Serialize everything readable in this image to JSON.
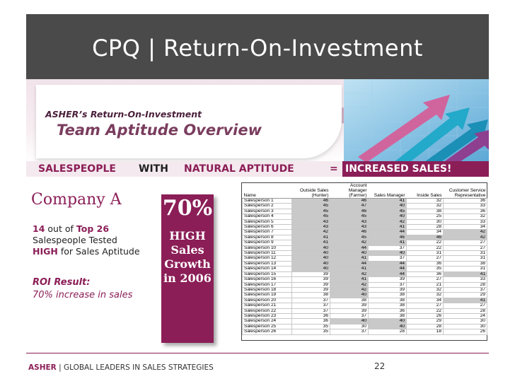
{
  "title": "CPQ | Return-On-Investment",
  "banner": {
    "subtitle": "ASHER’s Return-On-Investment",
    "headline": "Team Aptitude Overview"
  },
  "equation": {
    "part1": "SALESPEOPLE",
    "part2": "WITH",
    "part3": "NATURAL APTITUDE",
    "equals": "=",
    "result": "INCREASED SALES!"
  },
  "company": {
    "name": "Company A",
    "tested_count": "14",
    "out_of": "out of",
    "top": "Top 26",
    "tested_text": "Salespeople Tested",
    "high": "HIGH",
    "aptitude_text": "for Sales Aptitude",
    "roi_title": "ROI Result:",
    "roi_value": "70% increase in sales"
  },
  "growth_box": {
    "percent": "70%",
    "line1": "HIGH",
    "line2": "Sales",
    "line3": "Growth",
    "line4": "in 2006"
  },
  "table": {
    "headers": [
      "Name",
      "Outside Sales (Hunter)",
      "Account Manager (Farmer)",
      "Sales Manager",
      "Inside Sales",
      "Customer Service Representative"
    ],
    "rows": [
      {
        "name": "Salesperson 1",
        "values": [
          46,
          46,
          41,
          32,
          36
        ],
        "hl": [
          1,
          1,
          1,
          0,
          0
        ]
      },
      {
        "name": "Salesperson 2",
        "values": [
          45,
          47,
          40,
          32,
          33
        ],
        "hl": [
          1,
          1,
          1,
          0,
          0
        ]
      },
      {
        "name": "Salesperson 3",
        "values": [
          45,
          46,
          45,
          38,
          36
        ],
        "hl": [
          1,
          1,
          1,
          0,
          0
        ]
      },
      {
        "name": "Salesperson 4",
        "values": [
          45,
          45,
          40,
          25,
          32
        ],
        "hl": [
          1,
          1,
          1,
          0,
          0
        ]
      },
      {
        "name": "Salesperson 5",
        "values": [
          43,
          43,
          42,
          30,
          33
        ],
        "hl": [
          1,
          1,
          1,
          0,
          0
        ]
      },
      {
        "name": "Salesperson 6",
        "values": [
          43,
          43,
          41,
          28,
          34
        ],
        "hl": [
          1,
          1,
          1,
          0,
          0
        ]
      },
      {
        "name": "Salesperson 7",
        "values": [
          42,
          46,
          44,
          34,
          42
        ],
        "hl": [
          1,
          1,
          1,
          0,
          1
        ]
      },
      {
        "name": "Salesperson 8",
        "values": [
          41,
          45,
          46,
          46,
          42
        ],
        "hl": [
          1,
          1,
          1,
          1,
          1
        ]
      },
      {
        "name": "Salesperson 9",
        "values": [
          41,
          42,
          41,
          22,
          27
        ],
        "hl": [
          1,
          1,
          1,
          0,
          0
        ]
      },
      {
        "name": "Salesperson 10",
        "values": [
          40,
          44,
          37,
          22,
          27
        ],
        "hl": [
          1,
          1,
          0,
          0,
          0
        ]
      },
      {
        "name": "Salesperson 11",
        "values": [
          40,
          40,
          40,
          31,
          31
        ],
        "hl": [
          1,
          1,
          1,
          0,
          0
        ]
      },
      {
        "name": "Salesperson 12",
        "values": [
          40,
          41,
          37,
          27,
          31
        ],
        "hl": [
          1,
          1,
          0,
          0,
          0
        ]
      },
      {
        "name": "Salesperson 13",
        "values": [
          40,
          44,
          44,
          36,
          38
        ],
        "hl": [
          1,
          1,
          1,
          0,
          0
        ]
      },
      {
        "name": "Salesperson 14",
        "values": [
          40,
          41,
          44,
          35,
          31
        ],
        "hl": [
          1,
          1,
          1,
          0,
          0
        ]
      },
      {
        "name": "Salesperson 15",
        "values": [
          39,
          42,
          44,
          36,
          41
        ],
        "hl": [
          0,
          1,
          1,
          0,
          1
        ]
      },
      {
        "name": "Salesperson 16",
        "values": [
          39,
          41,
          39,
          27,
          33
        ],
        "hl": [
          0,
          1,
          0,
          0,
          0
        ]
      },
      {
        "name": "Salesperson 17",
        "values": [
          39,
          42,
          37,
          21,
          28
        ],
        "hl": [
          0,
          1,
          0,
          0,
          0
        ]
      },
      {
        "name": "Salesperson 18",
        "values": [
          39,
          42,
          39,
          32,
          37
        ],
        "hl": [
          0,
          1,
          0,
          0,
          0
        ]
      },
      {
        "name": "Salesperson 19",
        "values": [
          38,
          40,
          38,
          32,
          29
        ],
        "hl": [
          0,
          1,
          0,
          0,
          0
        ]
      },
      {
        "name": "Salesperson 20",
        "values": [
          37,
          38,
          38,
          34,
          41
        ],
        "hl": [
          0,
          0,
          0,
          0,
          1
        ]
      },
      {
        "name": "Salesperson 21",
        "values": [
          37,
          39,
          38,
          27,
          27
        ],
        "hl": [
          0,
          0,
          0,
          0,
          0
        ]
      },
      {
        "name": "Salesperson 22",
        "values": [
          37,
          39,
          36,
          22,
          28
        ],
        "hl": [
          0,
          0,
          0,
          0,
          0
        ]
      },
      {
        "name": "Salesperson 23",
        "values": [
          36,
          37,
          38,
          26,
          24
        ],
        "hl": [
          0,
          0,
          0,
          0,
          0
        ]
      },
      {
        "name": "Salesperson 24",
        "values": [
          36,
          40,
          40,
          29,
          30
        ],
        "hl": [
          0,
          1,
          1,
          0,
          0
        ]
      },
      {
        "name": "Salesperson 25",
        "values": [
          35,
          30,
          40,
          28,
          30
        ],
        "hl": [
          0,
          0,
          1,
          0,
          0
        ]
      },
      {
        "name": "Salesperson 26",
        "values": [
          35,
          37,
          28,
          18,
          26
        ],
        "hl": [
          0,
          0,
          0,
          0,
          0
        ]
      }
    ]
  },
  "footer": {
    "brand": "ASHER",
    "separator": "|",
    "tagline": "GLOBAL LEADERS IN SALES STRATEGIES",
    "page_number": "22"
  },
  "colors": {
    "title_bar": "#4a4a4a",
    "accent": "#8b1e57",
    "highlight_cell": "#c9c9c9"
  }
}
